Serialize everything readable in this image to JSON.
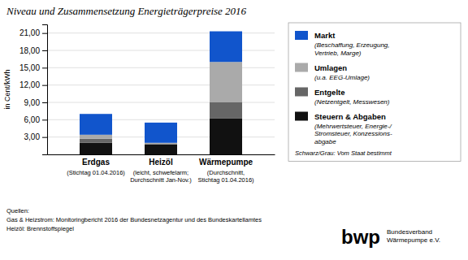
{
  "chart_data": {
    "type": "bar",
    "stacked": true,
    "grid": true,
    "title": "Niveau und Zusammensetzung Energieträgerpreise 2016",
    "ylabel": "in Cent/kWh",
    "categories": [
      "Erdgas",
      "Heizöl",
      "Wärmepumpe"
    ],
    "category_notes": [
      "(Stichtag 01.04.2016)",
      "(leicht, schwefelarm;\nDurchschnitt Jan-Nov.)",
      "(Durchschnitt,\nStichtag 01.04.2016)"
    ],
    "series": [
      {
        "name": "Steuern & Abgaben",
        "sub": "(Mehrwertsteuer, Energie-/\nStromsteuer, Konzessions-\nabgabe",
        "color": "#111111",
        "values": [
          2.0,
          1.7,
          6.2
        ]
      },
      {
        "name": "Entgelte",
        "sub": "(Netzentgelt, Messwesen)",
        "color": "#666666",
        "values": [
          0.7,
          0.1,
          2.8
        ]
      },
      {
        "name": "Umlagen",
        "sub": "(u.a. EEG-Umlage)",
        "color": "#aaaaaa",
        "values": [
          0.7,
          0.2,
          7.0
        ]
      },
      {
        "name": "Markt",
        "sub": "(Beschaffung, Erzeugung,\nVertrieb, Marge)",
        "color": "#1155cc",
        "values": [
          3.6,
          3.5,
          5.3
        ]
      }
    ],
    "ylim": [
      0,
      22.5
    ],
    "yticks": [
      {
        "value": 3.0,
        "label": "3,00"
      },
      {
        "value": 6.0,
        "label": "6,00"
      },
      {
        "value": 9.0,
        "label": "9,00"
      },
      {
        "value": 12.0,
        "label": "12,00"
      },
      {
        "value": 15.0,
        "label": "15,00"
      },
      {
        "value": 18.0,
        "label": "18,00"
      },
      {
        "value": 21.0,
        "label": "21,00"
      }
    ],
    "annotations": [
      "Schwarz/Grau: Vom Staat bestimmt",
      "Quellen:",
      "Gas & Heizstrom: Monitoringbericht 2016 der Bundesnetzagentur und des Bundeskartellamtes",
      "Heizöl: Brennstoffspiegel",
      "bwp",
      "Bundesverband\nWärmepumpe e.V."
    ]
  }
}
